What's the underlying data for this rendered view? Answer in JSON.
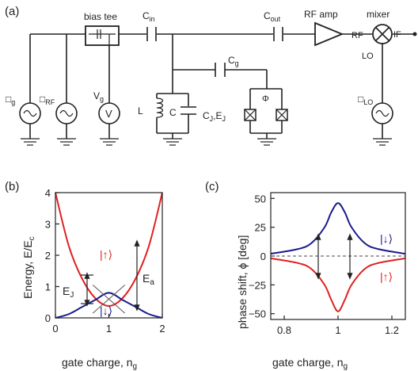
{
  "panel_labels": {
    "a": "(a)",
    "b": "(b)",
    "c": "(c)"
  },
  "circuit": {
    "bias_tee": "bias tee",
    "c_in": "C",
    "c_in_sub": "in",
    "c_out": "C",
    "c_out_sub": "out",
    "rf_amp": "RF amp",
    "mixer": "mixer",
    "rf_port": "RF",
    "if_port": "IF",
    "lo_port": "LO",
    "c_g": "C",
    "c_g_sub": "g",
    "inductor": "L",
    "capacitor": "C",
    "junction": "C",
    "junction_sub": "J",
    "junction_e": ",E",
    "junction_e_sub": "J",
    "flux": "Φ",
    "src_g": "□",
    "src_g_sub": "g",
    "src_rf": "□",
    "src_rf_sub": "RF",
    "vg": "V",
    "vg_sub": "g",
    "voltmeter": "V",
    "src_lo": "□",
    "src_lo_sub": "LO"
  },
  "chart_data": [
    {
      "type": "line",
      "panel": "(b)",
      "ylabel": "Energy, E/E",
      "ylabel_sub": "c",
      "xlabel": "gate charge, n",
      "xlabel_sub": "g",
      "xlim": [
        0,
        2
      ],
      "ylim": [
        0,
        4
      ],
      "xticks": [
        "0",
        "1",
        "2"
      ],
      "yticks": [
        "0",
        "1",
        "2",
        "3",
        "4"
      ],
      "series": [
        {
          "name": "|↑⟩",
          "color": "#e02020",
          "x": [
            0,
            0.25,
            0.5,
            0.75,
            1.0,
            1.25,
            1.5,
            1.75,
            2.0
          ],
          "y": [
            4.0,
            2.3,
            1.25,
            0.62,
            0.38,
            0.62,
            1.25,
            2.3,
            4.0
          ]
        },
        {
          "name": "|↓⟩",
          "color": "#1a1a8c",
          "x": [
            0,
            0.25,
            0.5,
            0.75,
            1.0,
            1.25,
            1.5,
            1.75,
            2.0
          ],
          "y": [
            0.0,
            0.12,
            0.35,
            0.58,
            0.8,
            0.58,
            0.35,
            0.12,
            0.0
          ]
        }
      ],
      "annotations": {
        "ej": "E",
        "ej_sub": "J",
        "ea": "E",
        "ea_sub": "a",
        "up": "|↑⟩",
        "down": "|↓⟩"
      }
    },
    {
      "type": "line",
      "panel": "(c)",
      "ylabel": "phase shift, ϕ [deg]",
      "xlabel": "gate charge, n",
      "xlabel_sub": "g",
      "xlim": [
        0.75,
        1.25
      ],
      "ylim": [
        -55,
        55
      ],
      "xticks": [
        "0.8",
        "1",
        "1.2"
      ],
      "yticks": [
        "50",
        "25",
        "0",
        "−25",
        "−50"
      ],
      "series": [
        {
          "name": "|↓⟩",
          "color": "#1a1a8c",
          "x": [
            0.75,
            0.85,
            0.9,
            0.95,
            0.975,
            1.0,
            1.025,
            1.05,
            1.1,
            1.15,
            1.25
          ],
          "y": [
            2,
            6,
            11,
            25,
            38,
            46,
            38,
            25,
            11,
            6,
            2
          ]
        },
        {
          "name": "|↑⟩",
          "color": "#e02020",
          "x": [
            0.75,
            0.85,
            0.9,
            0.95,
            0.975,
            1.0,
            1.025,
            1.05,
            1.1,
            1.15,
            1.25
          ],
          "y": [
            -2,
            -6,
            -11,
            -25,
            -38,
            -48,
            -38,
            -25,
            -11,
            -6,
            -2
          ]
        }
      ],
      "annotations": {
        "down": "|↓⟩",
        "up": "|↑⟩"
      }
    }
  ]
}
